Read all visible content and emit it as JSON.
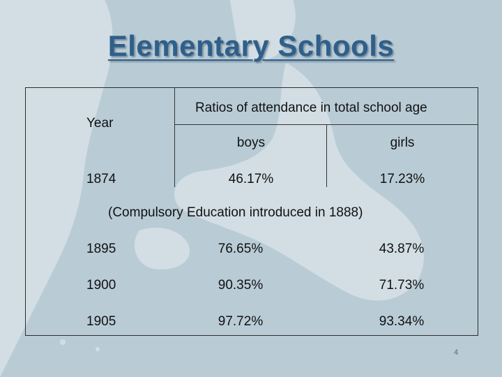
{
  "slide": {
    "title": "Elementary Schools",
    "page_number": "4"
  },
  "table": {
    "year_header": "Year",
    "group_header": "Ratios of attendance in total school age",
    "col_boys": "boys",
    "col_girls": "girls",
    "note": "(Compulsory Education introduced in 1888)",
    "rows": [
      {
        "year": "1874",
        "boys": "46.17%",
        "girls": "17.23%"
      },
      {
        "year": "1895",
        "boys": "76.65%",
        "girls": "43.87%"
      },
      {
        "year": "1900",
        "boys": "90.35%",
        "girls": "71.73%"
      },
      {
        "year": "1905",
        "boys": "97.72%",
        "girls": "93.34%"
      }
    ]
  },
  "colors": {
    "background": "#b9ccd6",
    "land": "#d5e0e6",
    "title": "#2f5f8a"
  }
}
